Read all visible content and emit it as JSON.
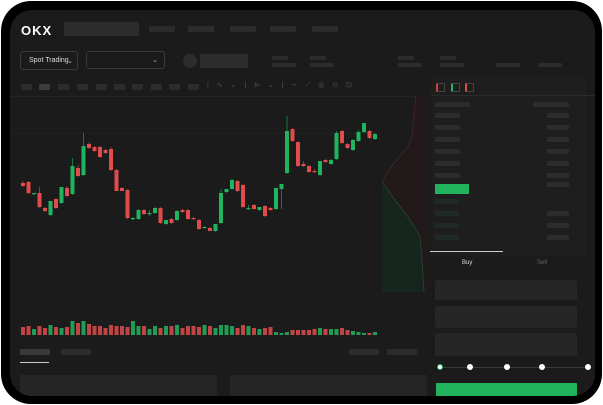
{
  "header": {
    "logo": "OKX"
  },
  "toolbar": {
    "market_dropdown": "Spot Trading",
    "pair_dropdown": ""
  },
  "order_form": {
    "buy_tab": "Buy",
    "sell_tab": "Sell",
    "slider_level": 0
  },
  "colors": {
    "up": "#22b35e",
    "down": "#e04b4b",
    "background": "#1b1b1b"
  },
  "chart_data": {
    "type": "candlestick",
    "candles": [
      [
        58,
        60,
        54,
        55
      ],
      [
        59,
        60,
        47,
        48
      ],
      [
        47,
        48,
        46,
        48
      ],
      [
        48,
        54,
        33,
        34
      ],
      [
        33,
        34,
        29,
        30
      ],
      [
        26,
        40,
        25,
        40
      ],
      [
        42,
        43,
        32,
        33
      ],
      [
        38,
        54,
        37,
        54
      ],
      [
        53,
        55,
        44,
        45
      ],
      [
        47,
        83,
        46,
        75
      ],
      [
        73,
        76,
        64,
        65
      ],
      [
        66,
        108,
        65,
        95
      ],
      [
        97,
        99,
        92,
        93
      ],
      [
        94,
        95,
        89,
        90
      ],
      [
        94,
        95,
        83,
        84
      ],
      [
        91,
        92,
        87,
        88
      ],
      [
        92,
        94,
        70,
        71
      ],
      [
        71,
        72,
        50,
        50
      ],
      [
        53,
        54,
        50,
        50
      ],
      [
        51,
        52,
        22,
        23
      ],
      [
        23,
        24,
        21,
        23
      ],
      [
        22,
        32,
        21,
        31
      ],
      [
        31,
        32,
        26,
        27
      ],
      [
        28,
        31,
        25,
        28
      ],
      [
        28,
        34,
        27,
        33
      ],
      [
        33,
        34,
        17,
        18
      ],
      [
        17,
        21,
        16,
        21
      ],
      [
        22,
        23,
        17,
        18
      ],
      [
        21,
        31,
        20,
        30
      ],
      [
        31,
        32,
        28,
        29
      ],
      [
        31,
        32,
        21,
        22
      ],
      [
        23,
        24,
        21,
        22
      ],
      [
        21,
        22,
        11,
        12
      ],
      [
        14,
        15,
        13,
        14
      ],
      [
        13,
        14,
        10,
        10
      ],
      [
        10,
        17,
        9,
        17
      ],
      [
        18,
        52,
        17,
        48
      ],
      [
        49,
        52,
        48,
        52
      ],
      [
        52,
        62,
        51,
        61
      ],
      [
        60,
        61,
        49,
        50
      ],
      [
        56,
        57,
        33,
        34
      ],
      [
        32,
        36,
        31,
        33
      ],
      [
        36,
        37,
        31,
        32
      ],
      [
        31,
        34,
        30,
        34
      ],
      [
        35,
        36,
        24,
        25
      ],
      [
        33,
        34,
        30,
        31
      ],
      [
        32,
        53,
        31,
        53
      ],
      [
        52,
        57,
        32,
        57
      ],
      [
        68,
        125,
        67,
        110
      ],
      [
        112,
        113,
        99,
        100
      ],
      [
        99,
        100,
        74,
        75
      ],
      [
        77,
        80,
        74,
        75
      ],
      [
        75,
        76,
        68,
        69
      ],
      [
        70,
        72,
        68,
        69
      ],
      [
        66,
        80,
        65,
        80
      ],
      [
        81,
        82,
        78,
        79
      ],
      [
        77,
        82,
        76,
        81
      ],
      [
        82,
        110,
        81,
        108
      ],
      [
        110,
        111,
        97,
        98
      ],
      [
        97,
        98,
        92,
        93
      ],
      [
        91,
        102,
        90,
        101
      ],
      [
        100,
        111,
        99,
        109
      ],
      [
        109,
        118,
        108,
        118
      ],
      [
        110,
        111,
        102,
        103
      ],
      [
        102,
        108,
        101,
        107
      ]
    ],
    "volume": [
      8,
      9,
      6,
      9,
      7,
      10,
      8,
      7,
      8,
      14,
      12,
      14,
      11,
      9,
      9,
      7,
      10,
      9,
      9,
      8,
      14,
      9,
      9,
      6,
      9,
      7,
      9,
      9,
      10,
      7,
      9,
      9,
      8,
      10,
      9,
      7,
      10,
      10,
      9,
      7,
      10,
      9,
      7,
      6,
      7,
      8,
      3,
      2,
      3,
      5,
      5,
      5,
      5,
      6,
      7,
      6,
      6,
      6,
      7,
      5,
      4,
      3,
      2,
      2,
      3
    ]
  }
}
